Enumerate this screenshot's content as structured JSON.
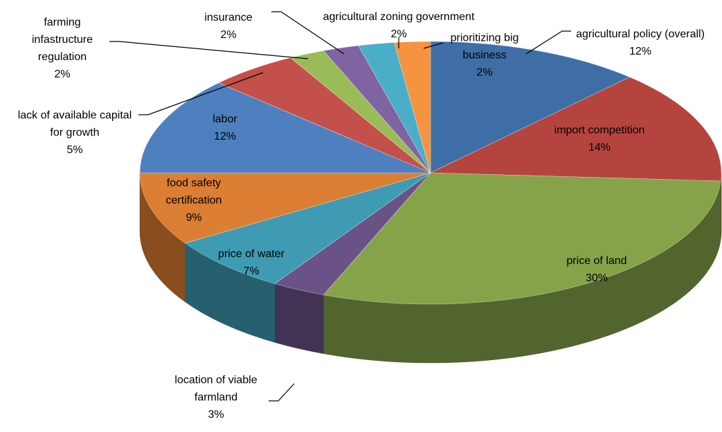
{
  "chart_data": {
    "type": "pie",
    "categories": [
      "agricultural policy (overall)",
      "import competition",
      "price of land",
      "location of viable farmland",
      "price of water",
      "food safety certification",
      "labor",
      "lack of available capital for growth",
      "farming infastructure regulation",
      "insurance",
      "agricultural zoning government",
      "prioritizing big business"
    ],
    "values": [
      12,
      14,
      30,
      3,
      7,
      9,
      12,
      5,
      2,
      2,
      2,
      2
    ],
    "value_labels": [
      "12%",
      "14%",
      "30%",
      "3%",
      "7%",
      "9%",
      "12%",
      "5%",
      "2%",
      "2%",
      "2%",
      "2%"
    ],
    "colors": [
      "#3f6ea6",
      "#b5443f",
      "#86a34a",
      "#6a5287",
      "#3e9bb3",
      "#dc7e33",
      "#4e80c0",
      "#c4504b",
      "#99bb58",
      "#7f64a1",
      "#4aaec8",
      "#f59341"
    ]
  }
}
